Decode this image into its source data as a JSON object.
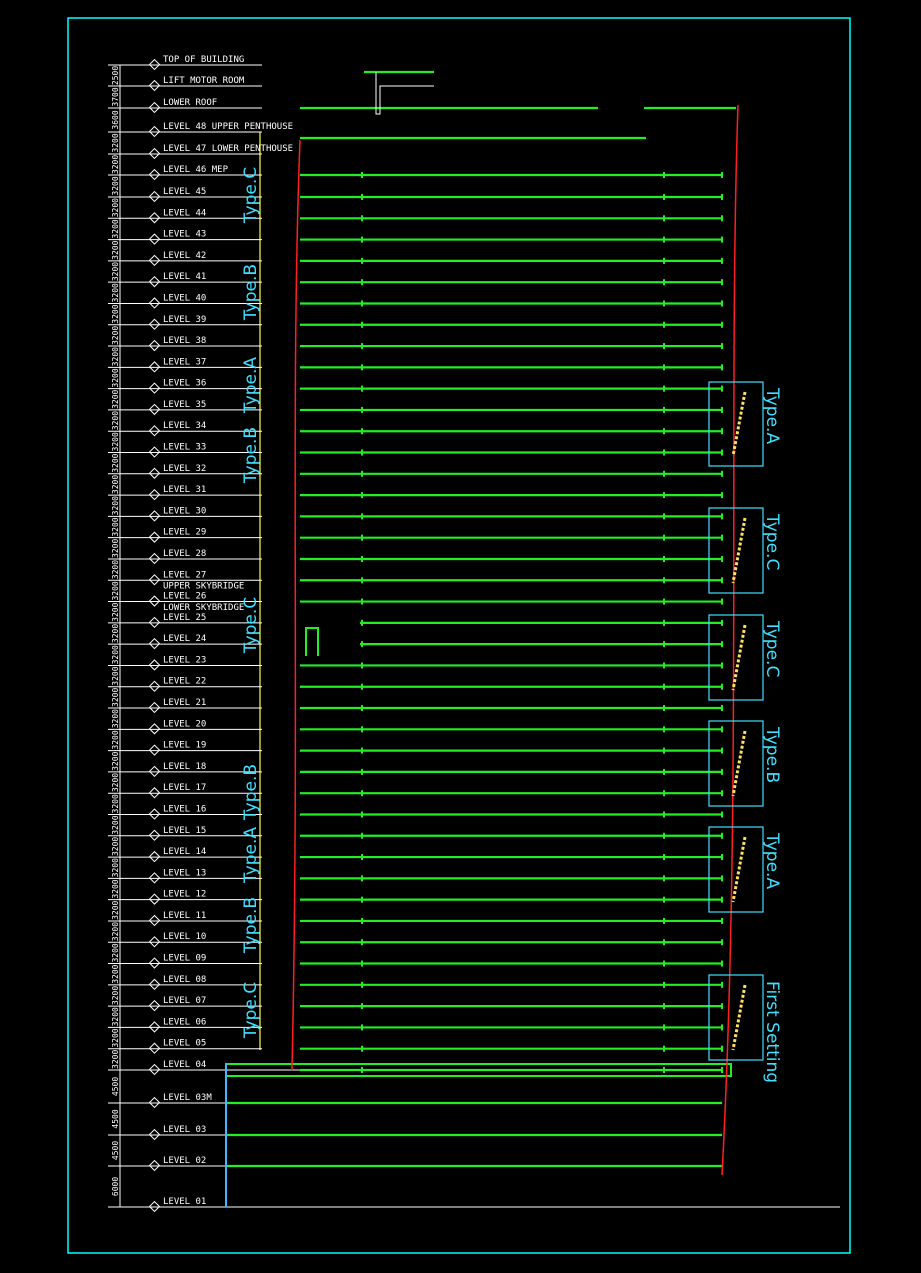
{
  "colors": {
    "background": "#000000",
    "frame": "#00ffff",
    "floor": "#22ee22",
    "facade": "#ff2020",
    "level_line": "#ffffff",
    "annotation": "#3fe0ff",
    "axis": "#ffff40"
  },
  "levels": [
    "TOP OF BUILDING",
    "LIFT MOTOR ROOM",
    "LOWER ROOF",
    "LEVEL 48 UPPER PENTHOUSE",
    "LEVEL 47 LOWER PENTHOUSE",
    "LEVEL 46 MEP",
    "LEVEL 45",
    "LEVEL 44",
    "LEVEL 43",
    "LEVEL 42",
    "LEVEL 41",
    "LEVEL 40",
    "LEVEL 39",
    "LEVEL 38",
    "LEVEL 37",
    "LEVEL 36",
    "LEVEL 35",
    "LEVEL 34",
    "LEVEL 33",
    "LEVEL 32",
    "LEVEL 31",
    "LEVEL 30",
    "LEVEL 29",
    "LEVEL 28",
    "LEVEL 27",
    "LEVEL 26",
    "LEVEL 25",
    "LEVEL 24",
    "LEVEL 23",
    "LEVEL 22",
    "LEVEL 21",
    "LEVEL 20",
    "LEVEL 19",
    "LEVEL 18",
    "LEVEL 17",
    "LEVEL 16",
    "LEVEL 15",
    "LEVEL 14",
    "LEVEL 13",
    "LEVEL 12",
    "LEVEL 11",
    "LEVEL 10",
    "LEVEL 09",
    "LEVEL 08",
    "LEVEL 07",
    "LEVEL 06",
    "LEVEL 05",
    "LEVEL 04",
    "LEVEL 03M",
    "LEVEL 03",
    "LEVEL 02",
    "LEVEL 01"
  ],
  "sublabels": {
    "upper_skybridge": "UPPER SKYBRIDGE",
    "lower_skybridge": "LOWER SKYBRIDGE"
  },
  "dimensions": [
    "2500",
    "3700",
    "3600",
    "3200",
    "3200",
    "3200",
    "3200",
    "3200",
    "3200",
    "3200",
    "3200",
    "3200",
    "3200",
    "3200",
    "3200",
    "3200",
    "3200",
    "3200",
    "3200",
    "3200",
    "3200",
    "3200",
    "3200",
    "3200",
    "3200",
    "3200",
    "3200",
    "3200",
    "3200",
    "3200",
    "3200",
    "3200",
    "3200",
    "3200",
    "3200",
    "3200",
    "3200",
    "3200",
    "3200",
    "3200",
    "3200",
    "3200",
    "3200",
    "3200",
    "3200",
    "3200",
    "3200",
    "4500",
    "4500",
    "4500",
    "6000"
  ],
  "zone_labels": [
    "Type.C",
    "Type.B",
    "Type.A",
    "Type.B",
    "Type.C",
    "Type.B",
    "Type.A",
    "Type.B",
    "Type.C"
  ],
  "detail_callouts": [
    "Type.A",
    "Type.C",
    "Type.C",
    "Type.B",
    "Type.A",
    "First Setting"
  ]
}
